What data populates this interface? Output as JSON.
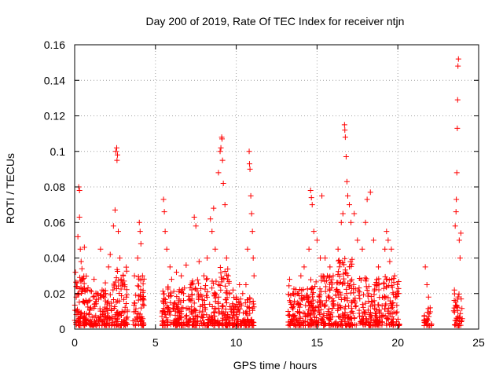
{
  "chart_data": {
    "type": "scatter",
    "title": "Day 200 of 2019, Rate Of TEC Index for receiver ntjn",
    "xlabel": "GPS time / hours",
    "ylabel": "ROTI / TECUs",
    "xlim": [
      0,
      25
    ],
    "ylim": [
      0,
      0.16
    ],
    "xticks": [
      0,
      5,
      10,
      15,
      20,
      25
    ],
    "yticks": [
      0,
      0.02,
      0.04,
      0.06,
      0.08,
      0.1,
      0.12,
      0.14,
      0.16
    ],
    "xtick_labels": [
      "0",
      "5",
      "10",
      "15",
      "20",
      "25"
    ],
    "ytick_labels": [
      "0",
      "0.02",
      "0.04",
      "0.06",
      "0.08",
      "0.1",
      "0.12",
      "0.14",
      "0.16"
    ],
    "grid": true,
    "marker": "+",
    "color": "#ff0000",
    "series": [
      {
        "points": [
          [
            0.05,
            0.032
          ],
          [
            0.1,
            0.018
          ],
          [
            0.15,
            0.026
          ],
          [
            0.2,
            0.052
          ],
          [
            0.25,
            0.08
          ],
          [
            0.3,
            0.078
          ],
          [
            0.3,
            0.063
          ],
          [
            0.35,
            0.045
          ],
          [
            0.4,
            0.038
          ],
          [
            0.45,
            0.034
          ],
          [
            0.5,
            0.028
          ],
          [
            0.6,
            0.046
          ],
          [
            0.7,
            0.022
          ],
          [
            0.8,
            0.015
          ],
          [
            1.0,
            0.012
          ],
          [
            1.2,
            0.028
          ],
          [
            1.4,
            0.02
          ],
          [
            1.6,
            0.045
          ],
          [
            1.7,
            0.022
          ],
          [
            1.9,
            0.026
          ],
          [
            2.1,
            0.035
          ],
          [
            2.2,
            0.042
          ],
          [
            2.4,
            0.058
          ],
          [
            2.5,
            0.067
          ],
          [
            2.55,
            0.1
          ],
          [
            2.6,
            0.102
          ],
          [
            2.62,
            0.095
          ],
          [
            2.65,
            0.098
          ],
          [
            2.7,
            0.055
          ],
          [
            2.8,
            0.04
          ],
          [
            3.0,
            0.03
          ],
          [
            3.2,
            0.018
          ],
          [
            3.7,
            0.03
          ],
          [
            3.9,
            0.04
          ],
          [
            4.0,
            0.06
          ],
          [
            4.05,
            0.055
          ],
          [
            4.1,
            0.048
          ],
          [
            4.2,
            0.03
          ],
          [
            5.5,
            0.073
          ],
          [
            5.55,
            0.066
          ],
          [
            5.6,
            0.055
          ],
          [
            5.7,
            0.045
          ],
          [
            5.9,
            0.035
          ],
          [
            6.0,
            0.028
          ],
          [
            6.3,
            0.032
          ],
          [
            6.6,
            0.03
          ],
          [
            6.9,
            0.036
          ],
          [
            7.2,
            0.025
          ],
          [
            7.4,
            0.063
          ],
          [
            7.5,
            0.058
          ],
          [
            7.7,
            0.038
          ],
          [
            8.0,
            0.03
          ],
          [
            8.2,
            0.04
          ],
          [
            8.4,
            0.062
          ],
          [
            8.5,
            0.055
          ],
          [
            8.6,
            0.068
          ],
          [
            8.7,
            0.045
          ],
          [
            8.9,
            0.088
          ],
          [
            9.0,
            0.1
          ],
          [
            9.05,
            0.102
          ],
          [
            9.1,
            0.108
          ],
          [
            9.12,
            0.107
          ],
          [
            9.15,
            0.095
          ],
          [
            9.2,
            0.082
          ],
          [
            9.3,
            0.07
          ],
          [
            9.4,
            0.04
          ],
          [
            9.5,
            0.03
          ],
          [
            9.8,
            0.022
          ],
          [
            10.0,
            0.018
          ],
          [
            10.2,
            0.025
          ],
          [
            10.4,
            0.02
          ],
          [
            10.6,
            0.025
          ],
          [
            10.7,
            0.045
          ],
          [
            10.8,
            0.1
          ],
          [
            10.82,
            0.093
          ],
          [
            10.85,
            0.09
          ],
          [
            10.9,
            0.075
          ],
          [
            10.95,
            0.065
          ],
          [
            11.0,
            0.055
          ],
          [
            11.05,
            0.04
          ],
          [
            11.1,
            0.03
          ],
          [
            13.3,
            0.028
          ],
          [
            13.5,
            0.02
          ],
          [
            13.8,
            0.015
          ],
          [
            14.0,
            0.03
          ],
          [
            14.2,
            0.035
          ],
          [
            14.5,
            0.045
          ],
          [
            14.6,
            0.078
          ],
          [
            14.65,
            0.074
          ],
          [
            14.7,
            0.07
          ],
          [
            14.8,
            0.055
          ],
          [
            15.0,
            0.05
          ],
          [
            15.2,
            0.04
          ],
          [
            15.3,
            0.075
          ],
          [
            15.5,
            0.04
          ],
          [
            15.8,
            0.035
          ],
          [
            16.0,
            0.03
          ],
          [
            16.3,
            0.045
          ],
          [
            16.5,
            0.06
          ],
          [
            16.6,
            0.065
          ],
          [
            16.7,
            0.115
          ],
          [
            16.72,
            0.112
          ],
          [
            16.75,
            0.108
          ],
          [
            16.8,
            0.097
          ],
          [
            16.85,
            0.083
          ],
          [
            16.9,
            0.075
          ],
          [
            17.0,
            0.07
          ],
          [
            17.1,
            0.06
          ],
          [
            17.3,
            0.065
          ],
          [
            17.5,
            0.05
          ],
          [
            17.8,
            0.045
          ],
          [
            18.0,
            0.06
          ],
          [
            18.1,
            0.073
          ],
          [
            18.3,
            0.077
          ],
          [
            18.5,
            0.05
          ],
          [
            18.8,
            0.035
          ],
          [
            19.2,
            0.045
          ],
          [
            19.3,
            0.055
          ],
          [
            19.4,
            0.05
          ],
          [
            19.5,
            0.038
          ],
          [
            19.6,
            0.045
          ],
          [
            19.8,
            0.03
          ],
          [
            20.0,
            0.02
          ],
          [
            21.7,
            0.035
          ],
          [
            21.8,
            0.025
          ],
          [
            21.9,
            0.018
          ],
          [
            22.0,
            0.012
          ],
          [
            23.5,
            0.022
          ],
          [
            23.55,
            0.058
          ],
          [
            23.6,
            0.066
          ],
          [
            23.62,
            0.073
          ],
          [
            23.65,
            0.088
          ],
          [
            23.68,
            0.113
          ],
          [
            23.7,
            0.129
          ],
          [
            23.72,
            0.148
          ],
          [
            23.75,
            0.152
          ],
          [
            23.8,
            0.05
          ],
          [
            23.85,
            0.04
          ],
          [
            23.9,
            0.054
          ]
        ]
      }
    ],
    "dense_bands": [
      {
        "x": [
          0.0,
          0.9
        ],
        "y": [
          0.002,
          0.03
        ],
        "n": 90
      },
      {
        "x": [
          0.9,
          2.3
        ],
        "y": [
          0.002,
          0.022
        ],
        "n": 110
      },
      {
        "x": [
          2.3,
          3.3
        ],
        "y": [
          0.002,
          0.035
        ],
        "n": 90
      },
      {
        "x": [
          3.6,
          4.3
        ],
        "y": [
          0.002,
          0.03
        ],
        "n": 60
      },
      {
        "x": [
          5.4,
          7.2
        ],
        "y": [
          0.002,
          0.025
        ],
        "n": 150
      },
      {
        "x": [
          7.2,
          8.8
        ],
        "y": [
          0.002,
          0.03
        ],
        "n": 130
      },
      {
        "x": [
          8.8,
          9.6
        ],
        "y": [
          0.002,
          0.035
        ],
        "n": 80
      },
      {
        "x": [
          9.6,
          11.1
        ],
        "y": [
          0.002,
          0.018
        ],
        "n": 120
      },
      {
        "x": [
          13.2,
          14.5
        ],
        "y": [
          0.002,
          0.025
        ],
        "n": 110
      },
      {
        "x": [
          14.5,
          16.2
        ],
        "y": [
          0.002,
          0.03
        ],
        "n": 150
      },
      {
        "x": [
          16.2,
          17.2
        ],
        "y": [
          0.002,
          0.04
        ],
        "n": 110
      },
      {
        "x": [
          17.2,
          18.9
        ],
        "y": [
          0.002,
          0.03
        ],
        "n": 130
      },
      {
        "x": [
          19.0,
          20.1
        ],
        "y": [
          0.002,
          0.03
        ],
        "n": 90
      },
      {
        "x": [
          21.6,
          22.1
        ],
        "y": [
          0.002,
          0.012
        ],
        "n": 25
      },
      {
        "x": [
          23.4,
          24.0
        ],
        "y": [
          0.002,
          0.02
        ],
        "n": 40
      }
    ]
  }
}
